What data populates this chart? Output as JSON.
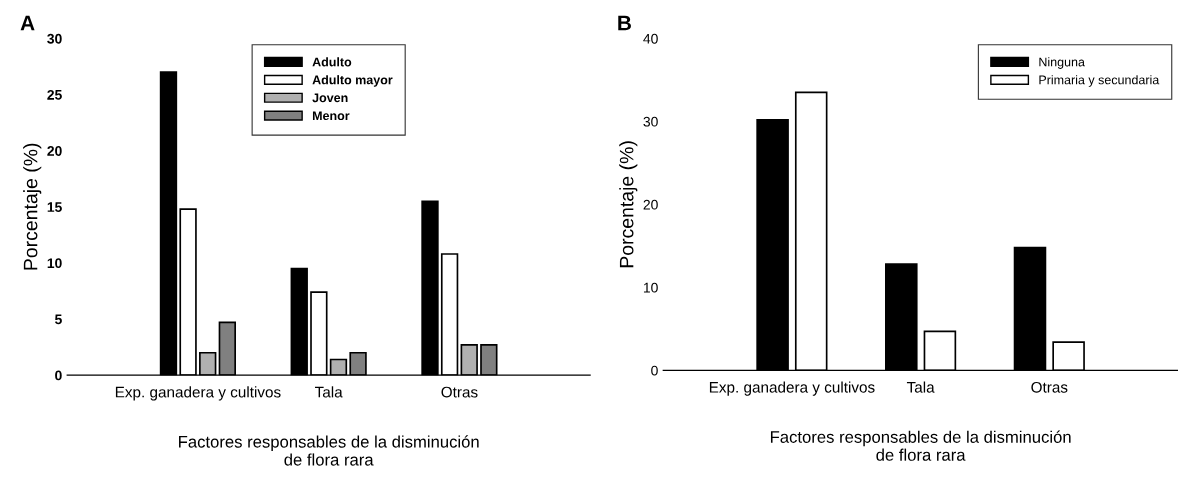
{
  "chart_data": [
    {
      "type": "bar",
      "title": "A",
      "xlabel": "Factores responsables de la disminución\nde flora rara",
      "ylabel": "Porcentaje (%)",
      "categories": [
        "Exp. ganadera y cultivos",
        "Tala",
        "Otras"
      ],
      "ylim": [
        0,
        30
      ],
      "yticks": [
        0,
        5,
        10,
        15,
        20,
        25,
        30
      ],
      "legend": "top",
      "grid": false,
      "series": [
        {
          "name": "Adulto",
          "color": "#000000",
          "values": [
            27.0,
            9.5,
            15.5
          ]
        },
        {
          "name": "Adulto mayor",
          "color": "#ffffff",
          "values": [
            14.8,
            7.4,
            10.8
          ]
        },
        {
          "name": "Joven",
          "color": "#b0b0b0",
          "values": [
            2.0,
            1.4,
            2.7
          ]
        },
        {
          "name": "Menor",
          "color": "#808080",
          "values": [
            4.7,
            2.0,
            2.7
          ]
        }
      ]
    },
    {
      "type": "bar",
      "title": "B",
      "xlabel": "Factores responsables de la disminución\nde flora rara",
      "ylabel": "Porcentaje (%)",
      "categories": [
        "Exp. ganadera y cultivos",
        "Tala",
        "Otras"
      ],
      "ylim": [
        0,
        40
      ],
      "yticks": [
        0,
        10,
        20,
        30,
        40
      ],
      "legend": "top right",
      "grid": false,
      "series": [
        {
          "name": "Ninguna",
          "color": "#000000",
          "values": [
            30.2,
            12.8,
            14.8
          ]
        },
        {
          "name": "Primaria y secundaria",
          "color": "#ffffff",
          "values": [
            33.5,
            4.7,
            3.4
          ]
        }
      ]
    }
  ]
}
